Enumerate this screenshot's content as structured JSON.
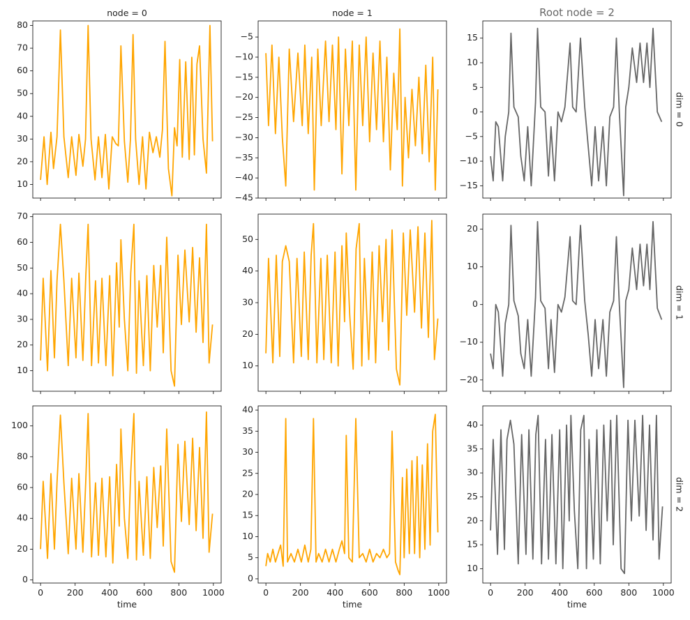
{
  "chart_data": {
    "type": "line",
    "layout": "3x3 facet grid",
    "x": {
      "label": "time",
      "range": [
        0,
        1000
      ],
      "ticks": [
        0,
        200,
        400,
        600,
        800,
        1000
      ],
      "tick_labels": [
        "0",
        "200",
        "400",
        "600",
        "800",
        "1000"
      ]
    },
    "column_titles": [
      "node = 0",
      "node = 1",
      "Root node = 2"
    ],
    "row_labels": [
      "dim = 0",
      "dim = 1",
      "dim = 2"
    ],
    "colors": {
      "node": "#FFA500",
      "root": "#666666"
    },
    "panels": [
      {
        "name": "node0-dim0",
        "color": "#FFA500",
        "ylim": [
          4,
          82
        ],
        "yticks": [
          10,
          20,
          30,
          40,
          50,
          60,
          70,
          80
        ],
        "ytick_labels": [
          "10",
          "20",
          "30",
          "40",
          "50",
          "60",
          "70",
          "80"
        ],
        "x": [
          0,
          20,
          38,
          60,
          75,
          95,
          115,
          135,
          160,
          180,
          205,
          222,
          245,
          260,
          275,
          292,
          315,
          335,
          355,
          375,
          395,
          415,
          435,
          450,
          465,
          485,
          505,
          520,
          535,
          550,
          570,
          590,
          610,
          630,
          650,
          670,
          690,
          705,
          720,
          740,
          760,
          775,
          790,
          805,
          820,
          840,
          860,
          875,
          890,
          905,
          920,
          940,
          960,
          980,
          995
        ],
        "y": [
          12,
          31,
          10,
          33,
          17,
          31,
          78,
          31,
          13,
          31,
          14,
          32,
          18,
          30,
          80,
          30,
          12,
          31,
          13,
          32,
          8,
          31,
          28,
          27,
          71,
          29,
          11,
          30,
          76,
          30,
          10,
          31,
          8,
          33,
          24,
          31,
          22,
          34,
          73,
          17,
          5,
          35,
          27,
          65,
          22,
          64,
          21,
          66,
          23,
          63,
          71,
          30,
          15,
          80,
          29
        ]
      },
      {
        "name": "node1-dim0",
        "color": "#FFA500",
        "ylim": [
          -45,
          -1
        ],
        "yticks": [
          -45,
          -40,
          -35,
          -30,
          -25,
          -20,
          -15,
          -10,
          -5
        ],
        "ytick_labels": [
          "−45",
          "−40",
          "−35",
          "−30",
          "−25",
          "−20",
          "−15",
          "−10",
          "−5"
        ],
        "x": [
          0,
          15,
          35,
          55,
          75,
          95,
          115,
          135,
          160,
          185,
          210,
          225,
          245,
          265,
          280,
          300,
          320,
          345,
          365,
          385,
          405,
          420,
          440,
          460,
          480,
          500,
          520,
          540,
          560,
          580,
          600,
          620,
          640,
          660,
          680,
          700,
          720,
          740,
          760,
          775,
          790,
          805,
          825,
          845,
          865,
          885,
          905,
          925,
          945,
          965,
          980,
          995
        ],
        "y": [
          -9,
          -27,
          -7,
          -29,
          -10,
          -30,
          -42,
          -8,
          -26,
          -9,
          -27,
          -7,
          -29,
          -10,
          -43,
          -8,
          -27,
          -6,
          -26,
          -7,
          -28,
          -5,
          -39,
          -8,
          -27,
          -6,
          -43,
          -7,
          -27,
          -5,
          -31,
          -9,
          -28,
          -6,
          -31,
          -10,
          -38,
          -14,
          -28,
          -3,
          -42,
          -20,
          -35,
          -18,
          -32,
          -15,
          -34,
          -12,
          -36,
          -10,
          -43,
          -18
        ]
      },
      {
        "name": "root-dim0",
        "color": "#666666",
        "ylim": [
          -17.5,
          18.5
        ],
        "yticks": [
          -15,
          -10,
          -5,
          0,
          5,
          10,
          15
        ],
        "ytick_labels": [
          "−15",
          "−10",
          "−5",
          "0",
          "5",
          "10",
          "15"
        ],
        "x": [
          0,
          15,
          30,
          45,
          70,
          85,
          105,
          118,
          135,
          160,
          175,
          195,
          215,
          235,
          260,
          272,
          290,
          315,
          335,
          350,
          370,
          390,
          410,
          430,
          460,
          475,
          495,
          520,
          545,
          565,
          585,
          605,
          625,
          650,
          670,
          690,
          712,
          728,
          745,
          770,
          782,
          800,
          820,
          845,
          865,
          885,
          905,
          922,
          940,
          965,
          990
        ],
        "y": [
          -9,
          -14,
          -2,
          -3,
          -14,
          -5,
          0,
          16,
          1,
          -1,
          -9,
          -14,
          -3,
          -15,
          2,
          17,
          1,
          0,
          -13,
          -3,
          -14,
          0,
          -2,
          1,
          14,
          1,
          0,
          15,
          1,
          -7,
          -15,
          -3,
          -14,
          -3,
          -15,
          -1,
          1,
          15,
          0,
          -17,
          1,
          5,
          13,
          6,
          14,
          6,
          14,
          5,
          17,
          0,
          -2
        ]
      },
      {
        "name": "node0-dim1",
        "color": "#FFA500",
        "ylim": [
          2,
          71
        ],
        "yticks": [
          10,
          20,
          30,
          40,
          50,
          60,
          70
        ],
        "ytick_labels": [
          "10",
          "20",
          "30",
          "40",
          "50",
          "60",
          "70"
        ],
        "x": [
          0,
          15,
          40,
          60,
          80,
          95,
          115,
          135,
          160,
          180,
          205,
          222,
          245,
          262,
          275,
          295,
          318,
          335,
          355,
          378,
          400,
          418,
          440,
          455,
          465,
          485,
          505,
          522,
          540,
          555,
          570,
          595,
          615,
          635,
          655,
          675,
          695,
          710,
          730,
          755,
          775,
          795,
          815,
          835,
          860,
          880,
          900,
          920,
          940,
          960,
          975,
          995
        ],
        "y": [
          14,
          46,
          10,
          49,
          15,
          45,
          67,
          45,
          12,
          46,
          15,
          48,
          14,
          47,
          67,
          12,
          45,
          13,
          46,
          12,
          47,
          8,
          52,
          27,
          61,
          30,
          10,
          48,
          67,
          9,
          45,
          12,
          47,
          10,
          51,
          27,
          51,
          17,
          62,
          10,
          4,
          55,
          28,
          57,
          29,
          58,
          25,
          54,
          21,
          67,
          13,
          28
        ]
      },
      {
        "name": "node1-dim1",
        "color": "#FFA500",
        "ylim": [
          2,
          58
        ],
        "yticks": [
          10,
          20,
          30,
          40,
          50
        ],
        "ytick_labels": [
          "10",
          "20",
          "30",
          "40",
          "50"
        ],
        "x": [
          0,
          15,
          40,
          60,
          80,
          95,
          115,
          135,
          160,
          180,
          205,
          222,
          245,
          262,
          275,
          295,
          318,
          335,
          355,
          378,
          400,
          418,
          440,
          455,
          465,
          485,
          505,
          522,
          540,
          555,
          570,
          595,
          615,
          635,
          655,
          675,
          695,
          710,
          730,
          755,
          775,
          795,
          815,
          835,
          860,
          880,
          900,
          920,
          940,
          960,
          975,
          995
        ],
        "y": [
          14,
          44,
          11,
          45,
          13,
          43,
          48,
          43,
          11,
          44,
          13,
          46,
          12,
          45,
          55,
          11,
          44,
          12,
          45,
          11,
          46,
          10,
          48,
          24,
          52,
          26,
          9,
          47,
          55,
          10,
          44,
          12,
          46,
          11,
          48,
          24,
          50,
          15,
          53,
          9,
          4,
          52,
          26,
          53,
          27,
          54,
          22,
          52,
          19,
          56,
          12,
          25
        ]
      },
      {
        "name": "root-dim1",
        "color": "#666666",
        "ylim": [
          -23,
          24
        ],
        "yticks": [
          -20,
          -10,
          0,
          10,
          20
        ],
        "ytick_labels": [
          "−20",
          "−10",
          "0",
          "10",
          "20"
        ],
        "x": [
          0,
          15,
          30,
          45,
          70,
          85,
          105,
          118,
          135,
          160,
          175,
          195,
          215,
          235,
          260,
          272,
          290,
          315,
          335,
          350,
          370,
          390,
          410,
          430,
          460,
          475,
          495,
          520,
          545,
          565,
          585,
          605,
          625,
          650,
          670,
          690,
          712,
          728,
          745,
          770,
          782,
          800,
          820,
          845,
          865,
          885,
          905,
          922,
          940,
          965,
          990
        ],
        "y": [
          -13,
          -17,
          0,
          -2,
          -19,
          -5,
          0,
          21,
          1,
          -3,
          -13,
          -17,
          -4,
          -19,
          2,
          22,
          1,
          -1,
          -17,
          -4,
          -18,
          0,
          -2,
          2,
          18,
          1,
          0,
          21,
          1,
          -8,
          -19,
          -4,
          -17,
          -4,
          -19,
          -2,
          1,
          18,
          0,
          -22,
          1,
          4,
          15,
          4,
          16,
          5,
          16,
          4,
          22,
          -1,
          -4
        ]
      },
      {
        "name": "node0-dim2",
        "color": "#FFA500",
        "ylim": [
          -2,
          113
        ],
        "yticks": [
          0,
          20,
          40,
          60,
          80,
          100
        ],
        "ytick_labels": [
          "0",
          "20",
          "40",
          "60",
          "80",
          "100"
        ],
        "x": [
          0,
          15,
          40,
          60,
          80,
          95,
          115,
          135,
          160,
          180,
          205,
          222,
          245,
          262,
          275,
          295,
          318,
          335,
          355,
          378,
          400,
          418,
          440,
          455,
          465,
          485,
          505,
          522,
          540,
          555,
          570,
          595,
          615,
          635,
          655,
          675,
          695,
          710,
          730,
          755,
          775,
          795,
          815,
          835,
          860,
          880,
          900,
          920,
          940,
          960,
          975,
          995
        ],
        "y": [
          20,
          64,
          14,
          69,
          20,
          63,
          107,
          63,
          17,
          66,
          20,
          69,
          18,
          65,
          108,
          15,
          63,
          16,
          66,
          15,
          67,
          11,
          75,
          35,
          98,
          40,
          14,
          70,
          108,
          13,
          64,
          16,
          67,
          14,
          73,
          34,
          74,
          22,
          98,
          12,
          5,
          88,
          38,
          90,
          36,
          92,
          32,
          86,
          27,
          109,
          18,
          43
        ]
      },
      {
        "name": "node1-dim2",
        "color": "#FFA500",
        "ylim": [
          -1,
          41
        ],
        "yticks": [
          0,
          5,
          10,
          15,
          20,
          25,
          30,
          35,
          40
        ],
        "ytick_labels": [
          "0",
          "5",
          "10",
          "15",
          "20",
          "25",
          "30",
          "35",
          "40"
        ],
        "x": [
          0,
          10,
          25,
          40,
          55,
          70,
          85,
          100,
          115,
          125,
          145,
          165,
          185,
          205,
          225,
          245,
          260,
          275,
          290,
          305,
          325,
          345,
          365,
          385,
          405,
          425,
          440,
          455,
          465,
          480,
          500,
          520,
          540,
          560,
          580,
          600,
          620,
          640,
          660,
          680,
          700,
          715,
          730,
          750,
          765,
          775,
          790,
          800,
          815,
          830,
          845,
          860,
          875,
          890,
          905,
          920,
          935,
          950,
          965,
          980,
          995
        ],
        "y": [
          3,
          6,
          4,
          7,
          4,
          6,
          8,
          3,
          38,
          4,
          6,
          4,
          7,
          4,
          8,
          4,
          7,
          38,
          4,
          6,
          4,
          7,
          4,
          7,
          4,
          7,
          9,
          6,
          34,
          5,
          4,
          38,
          5,
          6,
          4,
          7,
          4,
          6,
          5,
          7,
          5,
          6,
          35,
          4,
          2,
          1,
          24,
          5,
          26,
          6,
          28,
          6,
          29,
          5,
          27,
          7,
          32,
          8,
          35,
          39,
          11
        ]
      },
      {
        "name": "root-dim2",
        "color": "#666666",
        "ylim": [
          7,
          44
        ],
        "yticks": [
          10,
          15,
          20,
          25,
          30,
          35,
          40
        ],
        "ytick_labels": [
          "10",
          "15",
          "20",
          "25",
          "30",
          "35",
          "40"
        ],
        "x": [
          0,
          15,
          40,
          60,
          80,
          95,
          115,
          135,
          160,
          180,
          205,
          222,
          245,
          262,
          275,
          295,
          318,
          335,
          355,
          378,
          400,
          418,
          440,
          455,
          465,
          485,
          505,
          522,
          540,
          555,
          570,
          595,
          615,
          635,
          655,
          675,
          695,
          710,
          730,
          755,
          775,
          795,
          815,
          835,
          860,
          880,
          900,
          920,
          940,
          960,
          975,
          995
        ],
        "y": [
          18,
          37,
          13,
          39,
          14,
          37,
          41,
          36,
          11,
          38,
          13,
          39,
          12,
          38,
          42,
          11,
          37,
          12,
          38,
          11,
          39,
          10,
          40,
          20,
          42,
          22,
          10,
          39,
          42,
          10,
          37,
          12,
          39,
          11,
          40,
          20,
          41,
          15,
          42,
          10,
          9,
          41,
          20,
          41,
          21,
          42,
          18,
          40,
          16,
          42,
          12,
          23
        ]
      }
    ]
  }
}
